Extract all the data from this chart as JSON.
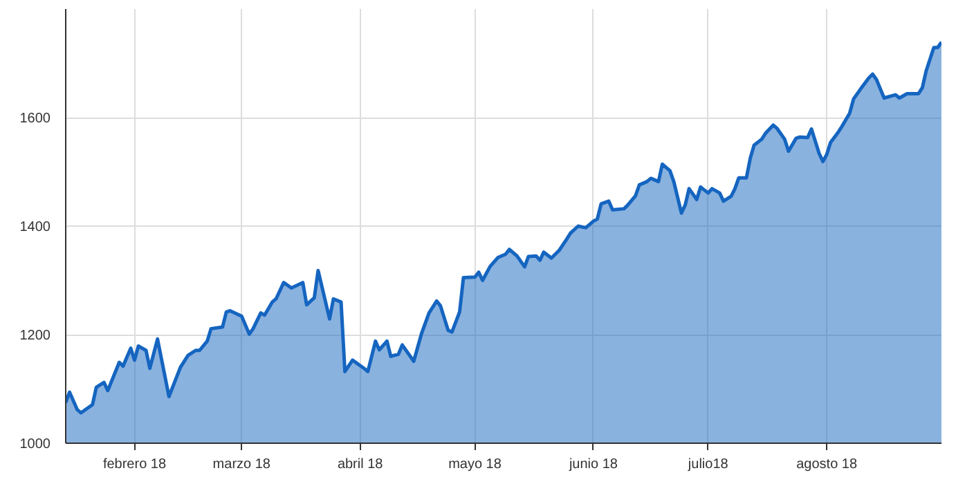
{
  "chart_data": {
    "type": "area",
    "color": "#1565c0",
    "grid": true,
    "xlim": [
      "2018-01-14",
      "2018-08-31"
    ],
    "xticks": [
      {
        "value": "2018-02-01",
        "label": "febrero 18"
      },
      {
        "value": "2018-03-01",
        "label": "marzo 18"
      },
      {
        "value": "2018-04-01",
        "label": "abril 18"
      },
      {
        "value": "2018-05-01",
        "label": "mayo 18"
      },
      {
        "value": "2018-06-01",
        "label": "junio 18"
      },
      {
        "value": "2018-07-01",
        "label": "julio18"
      },
      {
        "value": "2018-08-01",
        "label": "agosto 18"
      }
    ],
    "ylim": [
      1000,
      1800
    ],
    "yticks": [
      1000,
      1200,
      1400,
      1600
    ],
    "x": [
      "2018-01-14",
      "2018-01-15",
      "2018-01-17",
      "2018-01-18",
      "2018-01-21",
      "2018-01-22",
      "2018-01-24",
      "2018-01-25",
      "2018-01-28",
      "2018-01-29",
      "2018-01-31",
      "2018-02-01",
      "2018-02-02",
      "2018-02-04",
      "2018-02-05",
      "2018-02-07",
      "2018-02-10",
      "2018-02-13",
      "2018-02-15",
      "2018-02-17",
      "2018-02-18",
      "2018-02-20",
      "2018-02-21",
      "2018-02-24",
      "2018-02-25",
      "2018-02-26",
      "2018-03-01",
      "2018-03-03",
      "2018-03-04",
      "2018-03-06",
      "2018-03-07",
      "2018-03-09",
      "2018-03-10",
      "2018-03-12",
      "2018-03-14",
      "2018-03-17",
      "2018-03-18",
      "2018-03-20",
      "2018-03-21",
      "2018-03-24",
      "2018-03-25",
      "2018-03-27",
      "2018-03-28",
      "2018-03-30",
      "2018-04-02",
      "2018-04-03",
      "2018-04-05",
      "2018-04-06",
      "2018-04-08",
      "2018-04-09",
      "2018-04-11",
      "2018-04-12",
      "2018-04-15",
      "2018-04-17",
      "2018-04-19",
      "2018-04-21",
      "2018-04-22",
      "2018-04-24",
      "2018-04-25",
      "2018-04-27",
      "2018-04-28",
      "2018-05-01",
      "2018-05-02",
      "2018-05-03",
      "2018-05-05",
      "2018-05-07",
      "2018-05-09",
      "2018-05-10",
      "2018-05-12",
      "2018-05-14",
      "2018-05-15",
      "2018-05-17",
      "2018-05-18",
      "2018-05-19",
      "2018-05-21",
      "2018-05-23",
      "2018-05-25",
      "2018-05-26",
      "2018-05-28",
      "2018-05-30",
      "2018-06-01",
      "2018-06-02",
      "2018-06-03",
      "2018-06-05",
      "2018-06-06",
      "2018-06-09",
      "2018-06-10",
      "2018-06-12",
      "2018-06-13",
      "2018-06-15",
      "2018-06-16",
      "2018-06-18",
      "2018-06-19",
      "2018-06-21",
      "2018-06-22",
      "2018-06-24",
      "2018-06-25",
      "2018-06-26",
      "2018-06-28",
      "2018-06-29",
      "2018-07-01",
      "2018-07-02",
      "2018-07-04",
      "2018-07-05",
      "2018-07-07",
      "2018-07-08",
      "2018-07-09",
      "2018-07-11",
      "2018-07-12",
      "2018-07-13",
      "2018-07-15",
      "2018-07-16",
      "2018-07-18",
      "2018-07-19",
      "2018-07-21",
      "2018-07-22",
      "2018-07-24",
      "2018-07-25",
      "2018-07-27",
      "2018-07-28",
      "2018-07-30",
      "2018-07-31",
      "2018-08-01",
      "2018-08-02",
      "2018-08-04",
      "2018-08-05",
      "2018-08-07",
      "2018-08-08",
      "2018-08-10",
      "2018-08-12",
      "2018-08-13",
      "2018-08-14",
      "2018-08-16",
      "2018-08-19",
      "2018-08-20",
      "2018-08-22",
      "2018-08-25",
      "2018-08-26",
      "2018-08-27",
      "2018-08-29",
      "2018-08-30",
      "2018-08-31"
    ],
    "values": [
      1075,
      1094,
      1062,
      1056,
      1071,
      1103,
      1112,
      1097,
      1149,
      1142,
      1175,
      1153,
      1179,
      1171,
      1138,
      1192,
      1086,
      1140,
      1162,
      1171,
      1171,
      1188,
      1211,
      1214,
      1242,
      1244,
      1234,
      1201,
      1211,
      1240,
      1236,
      1260,
      1266,
      1296,
      1286,
      1296,
      1255,
      1268,
      1318,
      1229,
      1266,
      1260,
      1132,
      1153,
      1138,
      1132,
      1188,
      1172,
      1188,
      1160,
      1164,
      1181,
      1151,
      1201,
      1240,
      1262,
      1253,
      1208,
      1205,
      1242,
      1305,
      1306,
      1315,
      1300,
      1326,
      1342,
      1348,
      1357,
      1345,
      1325,
      1344,
      1345,
      1337,
      1352,
      1341,
      1355,
      1376,
      1387,
      1400,
      1397,
      1409,
      1413,
      1441,
      1446,
      1430,
      1432,
      1439,
      1456,
      1476,
      1482,
      1488,
      1482,
      1514,
      1502,
      1482,
      1424,
      1439,
      1469,
      1449,
      1472,
      1461,
      1469,
      1461,
      1446,
      1455,
      1469,
      1489,
      1489,
      1525,
      1549,
      1560,
      1571,
      1586,
      1580,
      1560,
      1538,
      1562,
      1564,
      1563,
      1579,
      1534,
      1519,
      1532,
      1554,
      1573,
      1584,
      1608,
      1634,
      1654,
      1673,
      1680,
      1670,
      1636,
      1642,
      1636,
      1644,
      1644,
      1655,
      1686,
      1729,
      1729,
      1739
    ]
  }
}
